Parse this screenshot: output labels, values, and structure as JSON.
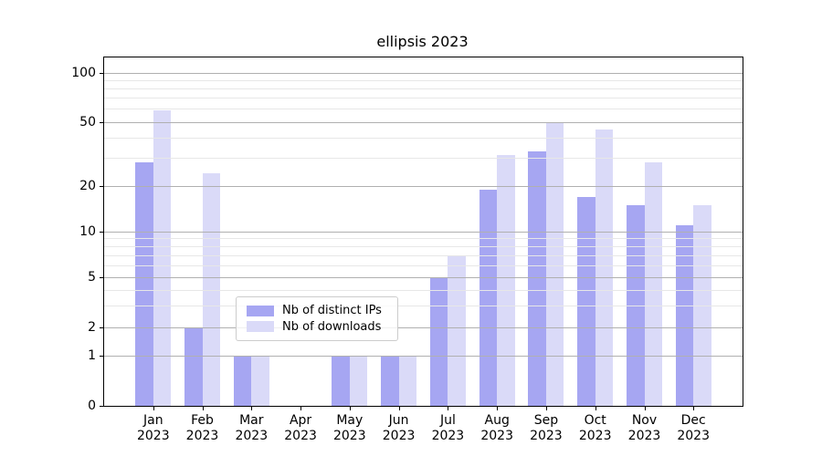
{
  "title": "ellipsis 2023",
  "colors": {
    "ips": "#a6a6f2",
    "downloads": "#dadaf8",
    "grid_major": "#b0b0b0",
    "grid_minor": "#e7e7e7",
    "spine": "#000000"
  },
  "legend": {
    "items": [
      {
        "label": "Nb of distinct IPs",
        "key": "ips"
      },
      {
        "label": "Nb of downloads",
        "key": "downloads"
      }
    ]
  },
  "y_axis": {
    "major_ticks": [
      0,
      1,
      2,
      5,
      10,
      20,
      50,
      100
    ],
    "minor_ticks": [
      3,
      4,
      6,
      7,
      8,
      9,
      30,
      40,
      60,
      70,
      80,
      90
    ]
  },
  "x_axis": {
    "months": [
      "Jan",
      "Feb",
      "Mar",
      "Apr",
      "May",
      "Jun",
      "Jul",
      "Aug",
      "Sep",
      "Oct",
      "Nov",
      "Dec"
    ],
    "year": "2023"
  },
  "chart_data": {
    "type": "bar",
    "title": "ellipsis 2023",
    "categories": [
      "Jan 2023",
      "Feb 2023",
      "Mar 2023",
      "Apr 2023",
      "May 2023",
      "Jun 2023",
      "Jul 2023",
      "Aug 2023",
      "Sep 2023",
      "Oct 2023",
      "Nov 2023",
      "Dec 2023"
    ],
    "series": [
      {
        "name": "Nb of distinct IPs",
        "values": [
          28,
          2,
          1,
          0,
          1,
          1,
          5,
          19,
          33,
          17,
          15,
          11
        ]
      },
      {
        "name": "Nb of downloads",
        "values": [
          59,
          24,
          1,
          0,
          1,
          1,
          7,
          31,
          50,
          45,
          28,
          15
        ]
      }
    ],
    "xlabel": "",
    "ylabel": "",
    "yscale": "log-like (linear segment between 0 and 1)",
    "yticks": [
      0,
      1,
      2,
      5,
      10,
      20,
      50,
      100
    ],
    "ylim": [
      0,
      125
    ],
    "grid": "horizontal major + minor, drawn above bars",
    "legend_position": "inside lower-center-left"
  }
}
